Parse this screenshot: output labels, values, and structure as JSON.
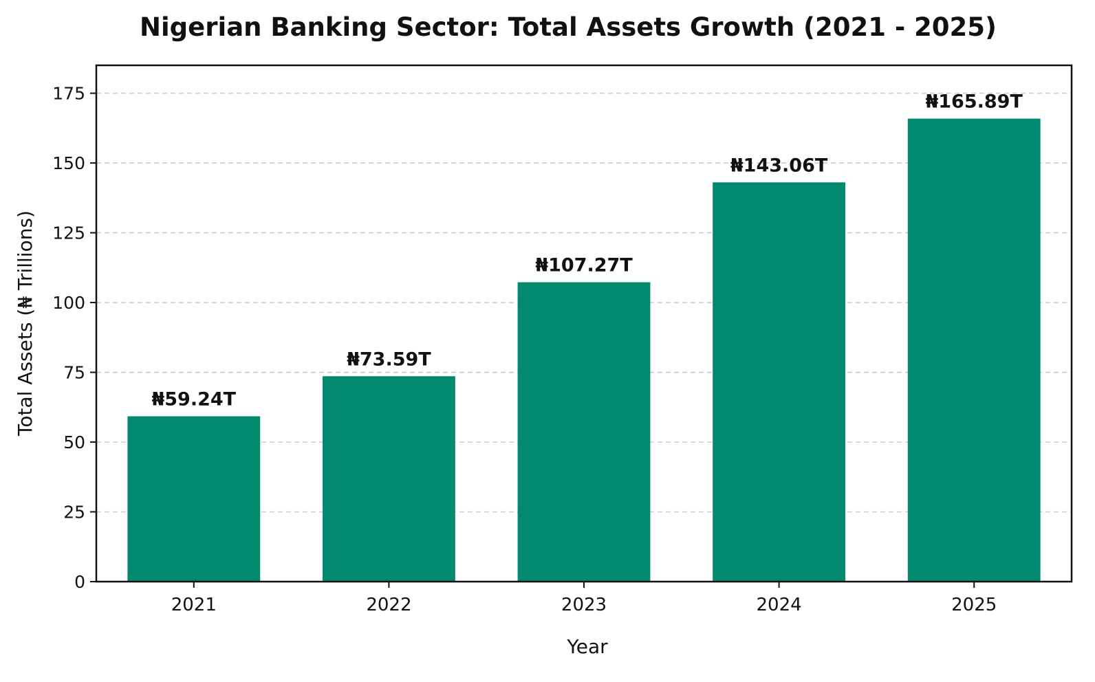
{
  "chart_data": {
    "type": "bar",
    "title": "Nigerian Banking Sector: Total Assets Growth (2021 - 2025)",
    "xlabel": "Year",
    "ylabel": "Total Assets (₦ Trillions)",
    "categories": [
      "2021",
      "2022",
      "2023",
      "2024",
      "2025"
    ],
    "values": [
      59.24,
      73.59,
      107.27,
      143.06,
      165.89
    ],
    "data_labels": [
      "₦59.24T",
      "₦73.59T",
      "₦107.27T",
      "₦143.06T",
      "₦165.89T"
    ],
    "ylim": [
      0,
      185
    ],
    "yticks": [
      0,
      25,
      50,
      75,
      100,
      125,
      150,
      175
    ],
    "ytick_labels": [
      "0",
      "25",
      "50",
      "75",
      "100",
      "125",
      "150",
      "175"
    ],
    "grid": "horizontal-dashed",
    "bar_color": "#028A70"
  }
}
